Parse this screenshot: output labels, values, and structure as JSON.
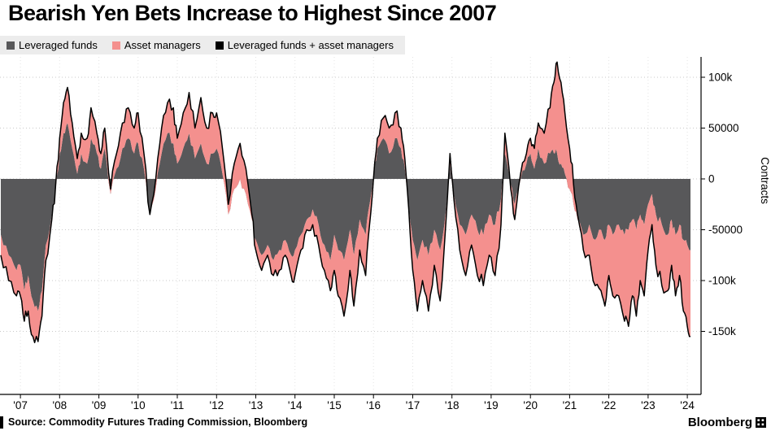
{
  "title": "Bearish Yen Bets Increase to Highest Since 2007",
  "source_line": "Source: Commodity Futures Trading Commission, Bloomberg",
  "brand": "Bloomberg",
  "colors": {
    "background": "#ffffff",
    "legend_background": "#ececec",
    "grid": "#cfcfcf",
    "axis": "#000000",
    "leveraged_funds": "#58585a",
    "asset_managers": "#f4908e",
    "total_line": "#000000"
  },
  "chart_data": {
    "type": "area",
    "subtype": "stacked areas with total line overlay",
    "title": "Bearish Yen Bets Increase to Highest Since 2007",
    "xlabel": "",
    "ylabel": "Contracts",
    "units": "thousands of contracts",
    "scale": 1000,
    "x_units": "year (decimal)",
    "grid": "dotted",
    "legend_position": "top-left",
    "xlim": [
      2006.48,
      2024.35
    ],
    "ylim": [
      -212000,
      120000
    ],
    "x_ticks": [
      {
        "x": 2007,
        "label": "'07"
      },
      {
        "x": 2008,
        "label": "'08"
      },
      {
        "x": 2009,
        "label": "'09"
      },
      {
        "x": 2010,
        "label": "'10"
      },
      {
        "x": 2011,
        "label": "'11"
      },
      {
        "x": 2012,
        "label": "'12"
      },
      {
        "x": 2013,
        "label": "'13"
      },
      {
        "x": 2014,
        "label": "'14"
      },
      {
        "x": 2015,
        "label": "'15"
      },
      {
        "x": 2016,
        "label": "'16"
      },
      {
        "x": 2017,
        "label": "'17"
      },
      {
        "x": 2018,
        "label": "'18"
      },
      {
        "x": 2019,
        "label": "'19"
      },
      {
        "x": 2020,
        "label": "'20"
      },
      {
        "x": 2021,
        "label": "'21"
      },
      {
        "x": 2022,
        "label": "'22"
      },
      {
        "x": 2023,
        "label": "'23"
      },
      {
        "x": 2024,
        "label": "'24"
      }
    ],
    "y_ticks": [
      {
        "v": 100000,
        "label": "100k"
      },
      {
        "v": 50000,
        "label": "50000"
      },
      {
        "v": 0,
        "label": "0"
      },
      {
        "v": -50000,
        "label": "-50000"
      },
      {
        "v": -100000,
        "label": "-100k"
      },
      {
        "v": -150000,
        "label": "-150k"
      }
    ],
    "x": [
      2006.5,
      2006.7,
      2006.9,
      2007.0,
      2007.1,
      2007.2,
      2007.32,
      2007.45,
      2007.55,
      2007.65,
      2007.8,
      2007.9,
      2008.0,
      2008.1,
      2008.2,
      2008.32,
      2008.45,
      2008.55,
      2008.7,
      2008.8,
      2008.95,
      2009.05,
      2009.15,
      2009.3,
      2009.45,
      2009.6,
      2009.75,
      2009.9,
      2010.0,
      2010.15,
      2010.3,
      2010.45,
      2010.6,
      2010.75,
      2010.9,
      2011.0,
      2011.15,
      2011.3,
      2011.45,
      2011.6,
      2011.75,
      2011.9,
      2012.0,
      2012.15,
      2012.3,
      2012.45,
      2012.6,
      2012.75,
      2012.9,
      2013.0,
      2013.15,
      2013.3,
      2013.45,
      2013.6,
      2013.75,
      2013.9,
      2014.0,
      2014.15,
      2014.3,
      2014.45,
      2014.6,
      2014.75,
      2014.9,
      2015.0,
      2015.1,
      2015.25,
      2015.4,
      2015.5,
      2015.65,
      2015.8,
      2015.9,
      2016.0,
      2016.1,
      2016.25,
      2016.4,
      2016.55,
      2016.7,
      2016.8,
      2016.9,
      2017.0,
      2017.12,
      2017.25,
      2017.4,
      2017.55,
      2017.7,
      2017.85,
      2017.95,
      2018.05,
      2018.2,
      2018.35,
      2018.5,
      2018.65,
      2018.8,
      2018.95,
      2019.1,
      2019.25,
      2019.35,
      2019.5,
      2019.6,
      2019.75,
      2019.9,
      2020.0,
      2020.1,
      2020.2,
      2020.35,
      2020.5,
      2020.6,
      2020.68,
      2020.78,
      2020.88,
      2021.0,
      2021.1,
      2021.2,
      2021.35,
      2021.5,
      2021.65,
      2021.8,
      2021.9,
      2022.0,
      2022.1,
      2022.25,
      2022.4,
      2022.5,
      2022.6,
      2022.7,
      2022.8,
      2022.9,
      2023.0,
      2023.1,
      2023.2,
      2023.35,
      2023.5,
      2023.6,
      2023.7,
      2023.8,
      2023.9,
      2024.0,
      2024.08
    ],
    "series": [
      {
        "name": "Leveraged funds",
        "type": "area",
        "color": "#58585a",
        "values_k": [
          -55,
          -75,
          -90,
          -85,
          -110,
          -95,
          -120,
          -130,
          -110,
          -65,
          -35,
          -10,
          25,
          45,
          55,
          30,
          5,
          25,
          15,
          40,
          25,
          10,
          30,
          -15,
          10,
          30,
          40,
          25,
          35,
          10,
          -35,
          -10,
          25,
          45,
          35,
          15,
          30,
          45,
          20,
          35,
          15,
          25,
          30,
          5,
          -35,
          -10,
          0,
          -15,
          -40,
          -60,
          -75,
          -65,
          -80,
          -70,
          -60,
          -75,
          -70,
          -55,
          -40,
          -30,
          -45,
          -65,
          -80,
          -55,
          -70,
          -80,
          -50,
          -75,
          -40,
          -55,
          -25,
          5,
          30,
          40,
          25,
          40,
          30,
          10,
          -25,
          -60,
          -80,
          -60,
          -75,
          -50,
          -70,
          -30,
          15,
          -15,
          -45,
          -55,
          -35,
          -50,
          -55,
          -35,
          -45,
          -20,
          25,
          -5,
          -25,
          0,
          15,
          25,
          10,
          30,
          15,
          25,
          25,
          25,
          15,
          5,
          -10,
          -25,
          -40,
          -55,
          -45,
          -60,
          -50,
          -60,
          -45,
          -55,
          -45,
          -55,
          -50,
          -40,
          -50,
          -35,
          -45,
          -25,
          -15,
          -35,
          -45,
          -55,
          -40,
          -55,
          -45,
          -60,
          -65,
          -70
        ]
      },
      {
        "name": "Asset managers",
        "type": "area",
        "color": "#f4908e",
        "values_k": [
          -20,
          -25,
          -25,
          -30,
          -30,
          -35,
          -35,
          -30,
          -25,
          -15,
          -5,
          5,
          15,
          30,
          35,
          25,
          15,
          20,
          25,
          30,
          20,
          15,
          20,
          5,
          15,
          25,
          30,
          25,
          30,
          15,
          0,
          10,
          25,
          30,
          35,
          25,
          35,
          40,
          30,
          45,
          35,
          40,
          35,
          25,
          10,
          25,
          35,
          25,
          5,
          -10,
          -15,
          -10,
          -15,
          -20,
          -15,
          -20,
          -25,
          -15,
          -10,
          -15,
          -20,
          -25,
          -30,
          -35,
          -45,
          -55,
          -40,
          -50,
          -30,
          -40,
          -20,
          -5,
          10,
          20,
          25,
          25,
          20,
          10,
          -5,
          -30,
          -50,
          -40,
          -55,
          -35,
          -50,
          -10,
          10,
          -5,
          -25,
          -40,
          -30,
          -45,
          -50,
          -40,
          -50,
          -25,
          20,
          -5,
          -15,
          5,
          10,
          15,
          20,
          25,
          30,
          45,
          70,
          90,
          80,
          60,
          40,
          20,
          5,
          -15,
          -30,
          -45,
          -60,
          -65,
          -50,
          -60,
          -70,
          -85,
          -95,
          -75,
          -85,
          -65,
          -70,
          -45,
          -30,
          -50,
          -60,
          -55,
          -45,
          -60,
          -50,
          -70,
          -80,
          -85
        ]
      },
      {
        "name": "Leveraged funds + asset managers",
        "type": "line",
        "color": "#000000",
        "derived": "sum of the two area series"
      }
    ],
    "source": "Source: Commodity Futures Trading Commission, Bloomberg"
  }
}
